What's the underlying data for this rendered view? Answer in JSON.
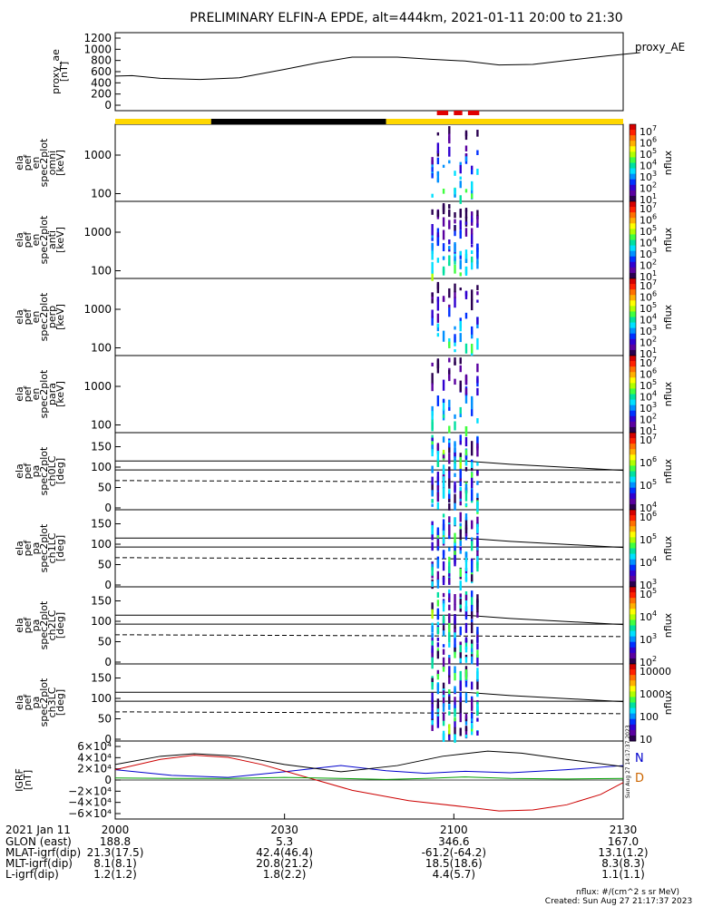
{
  "title": "PRELIMINARY ELFIN-A EPDE, alt=444km, 2021-01-11 20:00 to 21:30",
  "chart_data": [
    {
      "type": "line",
      "panel": "proxy_ae",
      "ylabel": [
        "proxy_ae",
        "[nT]"
      ],
      "ylim": [
        0,
        1200
      ],
      "yticks": [
        "1200",
        "1000",
        "800",
        "600",
        "400",
        "200",
        "0"
      ],
      "legend": "proxy_AE",
      "series": [
        {
          "name": "proxy_AE",
          "x": [
            0,
            3,
            8,
            15,
            22,
            30,
            36,
            42,
            50,
            56,
            62,
            68,
            74,
            80,
            87,
            93
          ],
          "y": [
            520,
            530,
            480,
            460,
            490,
            640,
            760,
            860,
            860,
            820,
            790,
            720,
            730,
            800,
            880,
            940
          ]
        }
      ]
    },
    {
      "type": "heatmap",
      "panel": "ela_pef_en_spec2plot_omni",
      "ylabel": [
        "ela",
        "pef",
        "en",
        "spec2plot",
        "omni",
        "[keV]"
      ],
      "yscale": "log",
      "yticks": [
        "1000",
        "100"
      ],
      "zlabel": "nflux",
      "zticks": [
        "10^7",
        "10^6",
        "10^5",
        "10^4",
        "10^3",
        "10^2",
        "10^1"
      ]
    },
    {
      "type": "heatmap",
      "panel": "ela_pef_en_spec2plot_anti",
      "ylabel": [
        "ela",
        "pef",
        "en",
        "spec2plot",
        "anti",
        "[keV]"
      ],
      "yscale": "log",
      "yticks": [
        "1000",
        "100"
      ],
      "zlabel": "nflux",
      "zticks": [
        "10^7",
        "10^6",
        "10^5",
        "10^4",
        "10^3",
        "10^2",
        "10^1"
      ]
    },
    {
      "type": "heatmap",
      "panel": "ela_pef_en_spec2plot_perp",
      "ylabel": [
        "ela",
        "pef",
        "en",
        "spec2plot",
        "perp",
        "[keV]"
      ],
      "yscale": "log",
      "yticks": [
        "1000",
        "100"
      ],
      "zlabel": "nflux",
      "zticks": [
        "10^7",
        "10^6",
        "10^5",
        "10^4",
        "10^3",
        "10^2",
        "10^1"
      ]
    },
    {
      "type": "heatmap",
      "panel": "ela_pef_en_spec2plot_para",
      "ylabel": [
        "ela",
        "pef",
        "en",
        "spec2plot",
        "para",
        "[keV]"
      ],
      "yscale": "log",
      "yticks": [
        "1000",
        "100"
      ],
      "zlabel": "nflux",
      "zticks": [
        "10^7",
        "10^6",
        "10^5",
        "10^4",
        "10^3",
        "10^2",
        "10^1"
      ]
    },
    {
      "type": "heatmap",
      "panel": "ela_pef_pa_spec2plot_ch0LC",
      "ylabel": [
        "ela",
        "pef",
        "pa",
        "spec2plot",
        "ch0LC",
        "[deg]"
      ],
      "ylim": [
        0,
        180
      ],
      "yticks": [
        "150",
        "100",
        "50",
        "0"
      ],
      "zlabel": "nflux",
      "zticks": [
        "10^7",
        "10^6",
        "10^5",
        "10^4"
      ]
    },
    {
      "type": "heatmap",
      "panel": "ela_pef_pa_spec2plot_ch1LC",
      "ylabel": [
        "ela",
        "pef",
        "pa",
        "spec2plot",
        "ch1LC",
        "[deg]"
      ],
      "ylim": [
        0,
        180
      ],
      "yticks": [
        "150",
        "100",
        "50",
        "0"
      ],
      "zlabel": "nflux",
      "zticks": [
        "10^6",
        "10^5",
        "10^4",
        "10^3"
      ]
    },
    {
      "type": "heatmap",
      "panel": "ela_pef_pa_spec2plot_ch2LC",
      "ylabel": [
        "ela",
        "pef",
        "pa",
        "spec2plot",
        "ch2LC",
        "[deg]"
      ],
      "ylim": [
        0,
        180
      ],
      "yticks": [
        "150",
        "100",
        "50",
        "0"
      ],
      "zlabel": "nflux",
      "zticks": [
        "10^5",
        "10^4",
        "10^3",
        "10^2"
      ]
    },
    {
      "type": "heatmap",
      "panel": "ela_pef_pa_spec2plot_ch3LC",
      "ylabel": [
        "ela",
        "pef",
        "pa",
        "spec2plot",
        "ch3LC",
        "[deg]"
      ],
      "ylim": [
        0,
        180
      ],
      "yticks": [
        "150",
        "100",
        "50",
        "0"
      ],
      "zlabel": "nflux",
      "zticks": [
        "10000",
        "1000",
        "100",
        "10"
      ]
    },
    {
      "type": "line",
      "panel": "IGRF",
      "ylabel": [
        "IGRF",
        "[nT]"
      ],
      "ylim": [
        -65000,
        65000
      ],
      "yticks": [
        "6×10⁴",
        "4×10⁴",
        "2×10⁴",
        "0",
        "−2×10⁴",
        "−4×10⁴",
        "−6×10⁴"
      ],
      "legend": [
        "N",
        "D"
      ],
      "series": [
        {
          "name": "N",
          "color": "#0000cc",
          "x": [
            0,
            10,
            20,
            30,
            40,
            48,
            55,
            62,
            70,
            80,
            90
          ],
          "y": [
            20000,
            9000,
            5000,
            16000,
            28000,
            18000,
            13000,
            17000,
            14000,
            20000,
            28000
          ]
        },
        {
          "name": "D",
          "color": "#cc0000",
          "x": [
            0,
            8,
            14,
            20,
            26,
            34,
            42,
            52,
            62,
            68,
            74,
            80,
            86,
            90
          ],
          "y": [
            20000,
            40000,
            48000,
            44000,
            30000,
            5000,
            -20000,
            -40000,
            -52000,
            -60000,
            -58000,
            -48000,
            -28000,
            -5000
          ]
        },
        {
          "name": "",
          "color": "#000000",
          "x": [
            0,
            8,
            14,
            22,
            30,
            40,
            50,
            58,
            66,
            72,
            80,
            90
          ],
          "y": [
            30000,
            46000,
            51000,
            46000,
            30000,
            16000,
            28000,
            46000,
            56000,
            52000,
            40000,
            26000
          ]
        },
        {
          "name": "",
          "color": "#00a000",
          "x": [
            0,
            10,
            20,
            30,
            40,
            48,
            55,
            62,
            70,
            80,
            90
          ],
          "y": [
            4000,
            3000,
            3000,
            5000,
            3000,
            1000,
            3000,
            6000,
            3000,
            2000,
            3000
          ]
        }
      ]
    }
  ],
  "time_axis": {
    "date_label": "2021 Jan 11",
    "ticks": [
      "2000",
      "2030",
      "2100",
      "2130"
    ],
    "rows": [
      {
        "label": "GLON (east)",
        "values": [
          "188.8",
          "5.3",
          "346.6",
          "167.0"
        ]
      },
      {
        "label": "MLAT-igrf(dip)",
        "values": [
          "21.3(17.5)",
          "42.4(46.4)",
          "-61.2(-64.2)",
          "13.1(1.2)"
        ]
      },
      {
        "label": "MLT-igrf(dip)",
        "values": [
          "8.1(8.1)",
          "20.8(21.2)",
          "18.5(18.6)",
          "8.3(8.3)"
        ]
      },
      {
        "label": "L-igrf(dip)",
        "values": [
          "1.2(1.2)",
          "1.8(2.2)",
          "4.4(5.7)",
          "1.1(1.1)"
        ]
      }
    ]
  },
  "footer": {
    "units": "nflux: #/(cm^2 s sr MeV)",
    "created": "Created: Sun Aug 27 21:17:37 2023",
    "side_stamp": "Sun Aug 27 14:17:37 2023"
  },
  "colors": {
    "sunlit": "#ffd700",
    "shadow": "#000000",
    "science": "#e00000"
  }
}
